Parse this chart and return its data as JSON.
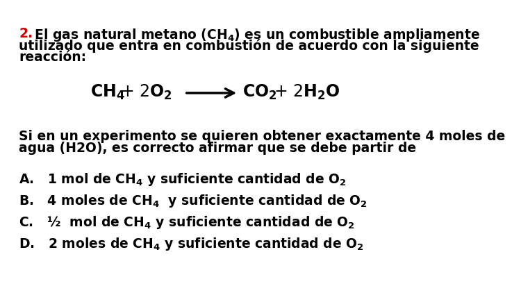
{
  "bg": "#ffffff",
  "red": "#cc0000",
  "black": "#000000",
  "line1_num": "2.",
  "line1_rest": " El gas natural metano (CH$_4$) es un combustible ampliamente",
  "line2": "utilizado que entra en combustión de acuerdo con la siguiente",
  "line3": "reacción:",
  "para1": "Si en un experimento se quieren obtener exactamente 4 moles de",
  "para2": "agua (H2O), es correcto afirmar que se debe partir de",
  "opt_A": "A.   1 mol de CH$_4$ y suficiente cantidad de O$_2$",
  "opt_B": "B.   4 moles de CH$_4$  y suficiente cantidad de O$_2$",
  "opt_C": "C.   ½  mol de CH$_4$ y suficiente cantidad de O$_2$",
  "opt_D": "D.   2 moles de CH$_4$ y suficiente cantidad de O$_2$",
  "fs": 13.5,
  "fs_eq": 17,
  "fs_sub_eq": 13
}
